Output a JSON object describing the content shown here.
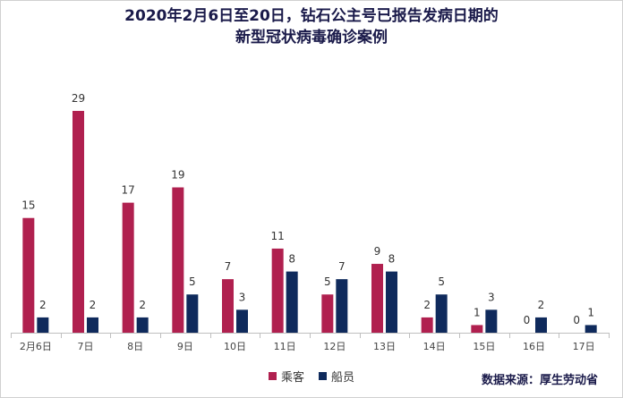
{
  "title_line1": "2020年2月6日至20日，钻石公主号已报告发病日期的",
  "title_line2": "新型冠状病毒确诊案例",
  "source": "数据来源：厚生劳动省",
  "colors": {
    "passenger": "#b0204f",
    "crew": "#0f2a5c"
  },
  "chart_data": {
    "type": "bar",
    "title": "2020年2月6日至20日，钻石公主号已报告发病日期的新型冠状病毒确诊案例",
    "categories": [
      "2月6日",
      "7日",
      "8日",
      "9日",
      "10日",
      "11日",
      "12日",
      "13日",
      "14日",
      "15日",
      "16日",
      "17日"
    ],
    "series": [
      {
        "name": "乘客",
        "values": [
          15,
          29,
          17,
          19,
          7,
          11,
          5,
          9,
          2,
          1,
          0,
          0
        ]
      },
      {
        "name": "船员",
        "values": [
          2,
          2,
          2,
          5,
          3,
          8,
          7,
          8,
          5,
          3,
          2,
          1
        ]
      }
    ],
    "ylim": [
      0,
      29
    ],
    "grid": false,
    "legend": "bottom-center",
    "data_labels": true
  }
}
